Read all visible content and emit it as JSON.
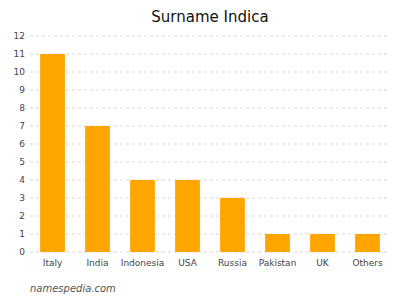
{
  "chart_data": {
    "type": "bar",
    "title": "Surname Indica",
    "categories": [
      "Italy",
      "India",
      "Indonesia",
      "USA",
      "Russia",
      "Pakistan",
      "UK",
      "Others"
    ],
    "values": [
      11,
      7,
      4,
      4,
      3,
      1,
      1,
      1
    ],
    "color": "#FFA500",
    "ylim": [
      0,
      12
    ],
    "yticks": [
      0,
      1,
      2,
      3,
      4,
      5,
      6,
      7,
      8,
      9,
      10,
      11,
      12
    ],
    "grid": true,
    "annotations": [
      "namespedia.com"
    ]
  }
}
